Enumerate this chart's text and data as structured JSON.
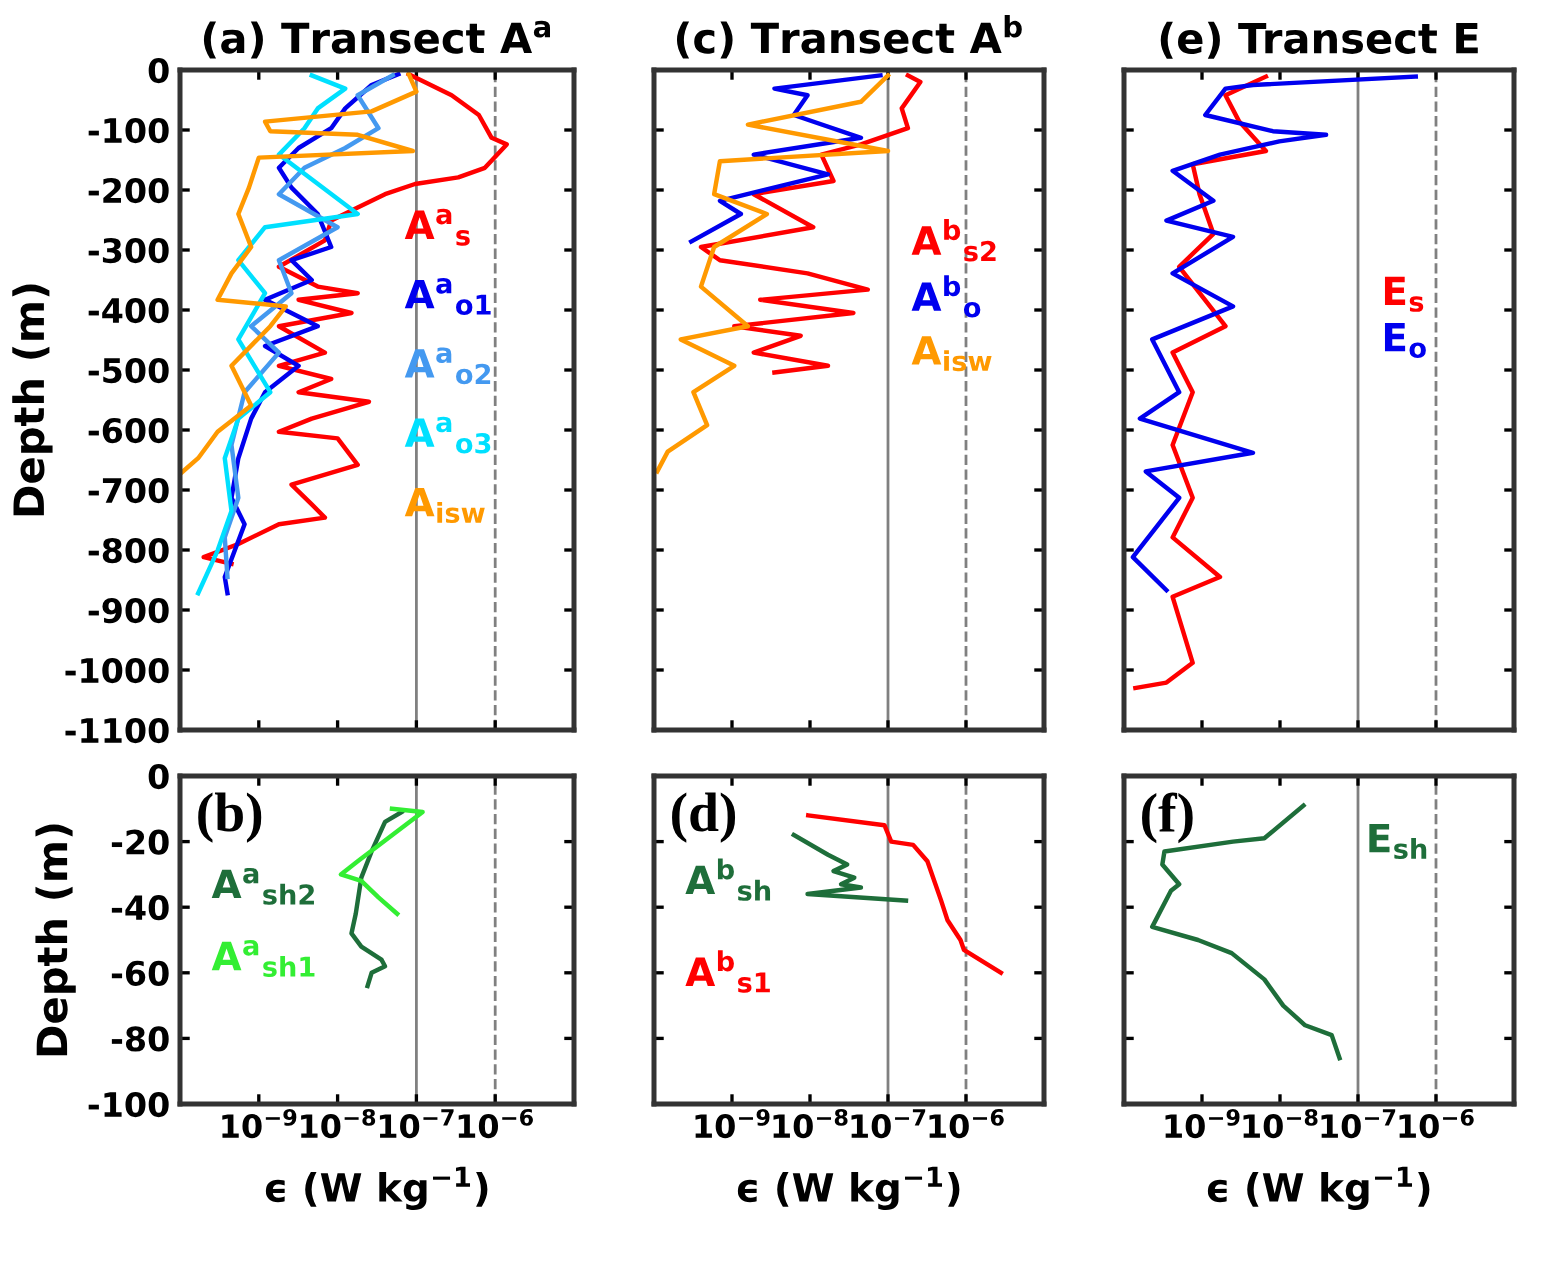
{
  "chart_data": [
    {
      "type": "line",
      "title": "(a) Transect A$^{a}$",
      "ylabel": "Depth (m)",
      "log": "x",
      "xlim": [
        1e-10,
        1e-05
      ],
      "ylim": [
        -1100,
        0
      ],
      "tick_labels": "y",
      "legend": false,
      "grid": false,
      "xticks": [
        {
          "value": 1e-09,
          "label": null
        },
        {
          "value": 1e-08,
          "label": null
        },
        {
          "value": 1e-07,
          "label": null
        },
        {
          "value": 1e-06,
          "label": null
        }
      ],
      "yticks": [
        0,
        -100,
        -200,
        -300,
        -400,
        -500,
        -600,
        -700,
        -800,
        -900,
        -1000,
        -1100
      ],
      "ref_lines": [
        {
          "axis": "x",
          "value": 1e-07,
          "color": "#808080",
          "line_style": "solid"
        },
        {
          "axis": "x",
          "value": 1e-06,
          "color": "#808080",
          "line_style": "dashed"
        }
      ],
      "series": [
        {
          "name": "A$^{a}$$_{s}$",
          "color": "#ff0000",
          "x": [
            8e-08,
            2.8e-07,
            6.2e-07,
            9e-07,
            1.4e-06,
            7.4e-07,
            3.4e-07,
            9.6e-08,
            4e-08,
            1.8e-08,
            8.3e-09,
            6.9e-09,
            1.8e-09,
            5.6e-09,
            1.8e-08,
            3.2e-09,
            1.5e-08,
            1.8e-09,
            6.9e-09,
            1.8e-09,
            8.3e-09,
            3.2e-09,
            2.5e-08,
            4.7e-09,
            1.8e-09,
            1e-08,
            1.8e-08,
            2.6e-09,
            4.7e-09,
            6.9e-09,
            1.8e-09,
            5.5e-10,
            2e-10,
            4.5e-10
          ],
          "values": [
            -7,
            -42,
            -75,
            -113,
            -124,
            -163,
            -179,
            -190,
            -207,
            -229,
            -251,
            -284,
            -328,
            -361,
            -372,
            -383,
            -405,
            -427,
            -471,
            -493,
            -515,
            -537,
            -553,
            -581,
            -603,
            -614,
            -658,
            -691,
            -724,
            -746,
            -757,
            -790,
            -812,
            -823
          ]
        },
        {
          "name": "A$^{a}$$_{o1}$",
          "color": "#0000ee",
          "x": [
            5.9e-08,
            2.7e-08,
            1.25e-08,
            8.3e-09,
            3.2e-09,
            1.8e-09,
            2.6e-09,
            5.6e-09,
            8.3e-09,
            2.6e-09,
            4.7e-09,
            1.2e-09,
            5.6e-09,
            1.2e-09,
            3.2e-09,
            1.2e-09,
            8e-10,
            5.5e-10,
            4.5e-10,
            6.6e-10,
            3.7e-10,
            4e-10
          ],
          "values": [
            -7,
            -25,
            -64,
            -97,
            -130,
            -163,
            -196,
            -240,
            -295,
            -317,
            -350,
            -383,
            -427,
            -460,
            -493,
            -537,
            -581,
            -647,
            -713,
            -757,
            -845,
            -872
          ]
        },
        {
          "name": "A$^{a}$$_{o2}$",
          "color": "#4499f0",
          "x": [
            5e-08,
            1.8e-08,
            3.3e-08,
            1.25e-08,
            3.8e-09,
            1.8e-09,
            1e-08,
            1.8e-09,
            2.6e-09,
            8e-10,
            1.8e-09,
            6.6e-10,
            4.5e-10,
            5.5e-10,
            3.7e-10,
            4e-10
          ],
          "values": [
            -9,
            -42,
            -97,
            -130,
            -163,
            -207,
            -262,
            -317,
            -372,
            -427,
            -471,
            -537,
            -625,
            -713,
            -779,
            -845
          ]
        },
        {
          "name": "A$^{a}$$_{o3}$",
          "color": "#00e0ff",
          "x": [
            4.7e-09,
            1.25e-08,
            5.6e-09,
            3.8e-09,
            1.8e-09,
            1.8e-08,
            1.2e-09,
            5.5e-10,
            1.2e-09,
            5.5e-10,
            1.4e-09,
            5.5e-10,
            3.7e-10,
            4.5e-10,
            3e-10,
            1.7e-10
          ],
          "values": [
            -9,
            -31,
            -64,
            -97,
            -141,
            -240,
            -262,
            -317,
            -372,
            -449,
            -537,
            -581,
            -647,
            -735,
            -801,
            -872
          ]
        },
        {
          "name": "A$_{isw}$",
          "color": "#ff9900",
          "x": [
            8e-08,
            1e-07,
            2.7e-08,
            1.2e-09,
            1.4e-09,
            1.8e-08,
            9e-08,
            1e-09,
            7.5e-10,
            5.5e-10,
            8e-10,
            4.5e-10,
            3e-10,
            2.2e-09,
            1.4e-09,
            4.5e-10,
            8e-10,
            3e-10,
            1.7e-10,
            1.05e-10
          ],
          "values": [
            -7,
            -36,
            -69,
            -86,
            -102,
            -108,
            -135,
            -146,
            -196,
            -240,
            -295,
            -339,
            -383,
            -394,
            -427,
            -493,
            -559,
            -603,
            -647,
            -671
          ]
        }
      ]
    },
    {
      "type": "line",
      "title": "(c) Transect A$^{b}$",
      "log": "x",
      "xlim": [
        1e-10,
        1e-05
      ],
      "ylim": [
        -1100,
        0
      ],
      "tick_labels": false,
      "legend": false,
      "grid": false,
      "xticks": [
        {
          "value": 1e-09,
          "label": null
        },
        {
          "value": 1e-08,
          "label": null
        },
        {
          "value": 1e-07,
          "label": null
        },
        {
          "value": 1e-06,
          "label": null
        }
      ],
      "yticks": [
        0,
        -100,
        -200,
        -300,
        -400,
        -500,
        -600,
        -700,
        -800,
        -900,
        -1000,
        -1100
      ],
      "ref_lines": [
        {
          "axis": "x",
          "value": 1e-07,
          "color": "#808080",
          "line_style": "solid"
        },
        {
          "axis": "x",
          "value": 1e-06,
          "color": "#808080",
          "line_style": "dashed"
        }
      ],
      "series": [
        {
          "name": "A$^{b}$$_{s2}$",
          "color": "#ff0000",
          "x": [
            1.8e-07,
            2.6e-07,
            1.5e-07,
            1.8e-07,
            4.5e-08,
            1.4e-08,
            2e-08,
            1.9e-09,
            1.1e-08,
            4e-10,
            7e-10,
            9.3e-09,
            5.5e-08,
            2.3e-09,
            3.6e-08,
            1.07e-09,
            7.6e-09,
            1.9e-09,
            1.7e-08,
            3.5e-09
          ],
          "values": [
            -9,
            -20,
            -64,
            -97,
            -124,
            -141,
            -185,
            -207,
            -262,
            -295,
            -317,
            -339,
            -366,
            -383,
            -405,
            -427,
            -443,
            -471,
            -493,
            -504
          ]
        },
        {
          "name": "A$^{b}$$_{o}$",
          "color": "#0000ee",
          "x": [
            8e-08,
            3.5e-09,
            9.3e-09,
            6.2e-09,
            4.5e-08,
            1.9e-09,
            1.7e-08,
            7e-10,
            1.3e-09,
            3e-10
          ],
          "values": [
            -9,
            -31,
            -42,
            -75,
            -113,
            -141,
            -174,
            -218,
            -240,
            -286
          ]
        },
        {
          "name": "A$_{isw}$",
          "color": "#ff9900",
          "x": [
            1e-07,
            4.5e-08,
            1.6e-09,
            1e-07,
            7e-10,
            5.9e-10,
            2.8e-09,
            5.9e-10,
            4e-10,
            1.6e-09,
            2.2e-10,
            1.07e-09,
            3.2e-10,
            4.8e-10,
            1.5e-10,
            1.1e-10
          ],
          "values": [
            -9,
            -53,
            -91,
            -135,
            -152,
            -207,
            -240,
            -295,
            -361,
            -427,
            -449,
            -493,
            -537,
            -592,
            -636,
            -669
          ]
        }
      ]
    },
    {
      "type": "line",
      "title": "(e) Transect E",
      "log": "x",
      "xlim": [
        1e-10,
        1e-05
      ],
      "ylim": [
        -1100,
        0
      ],
      "tick_labels": false,
      "legend": false,
      "grid": false,
      "xticks": [
        {
          "value": 1e-09,
          "label": null
        },
        {
          "value": 1e-08,
          "label": null
        },
        {
          "value": 1e-07,
          "label": null
        },
        {
          "value": 1e-06,
          "label": null
        }
      ],
      "yticks": [
        0,
        -100,
        -200,
        -300,
        -400,
        -500,
        -600,
        -700,
        -800,
        -900,
        -1000,
        -1100
      ],
      "ref_lines": [
        {
          "axis": "x",
          "value": 1e-07,
          "color": "#808080",
          "line_style": "solid"
        },
        {
          "axis": "x",
          "value": 1e-06,
          "color": "#808080",
          "line_style": "dashed"
        }
      ],
      "series": [
        {
          "name": "E$_{s}$",
          "color": "#ff0000",
          "x": [
            6.6e-09,
            2e-09,
            3e-09,
            6.6e-09,
            7.6e-10,
            9.3e-10,
            1.4e-09,
            5.1e-10,
            2e-09,
            4.2e-10,
            7.6e-10,
            4.2e-10,
            7.6e-10,
            4.2e-10,
            1.7e-09,
            4.2e-10,
            7.6e-10,
            3.5e-10,
            1.4e-10
          ],
          "values": [
            -11,
            -42,
            -86,
            -135,
            -157,
            -207,
            -273,
            -328,
            -427,
            -471,
            -537,
            -625,
            -713,
            -779,
            -845,
            -878,
            -988,
            -1021,
            -1030
          ]
        },
        {
          "name": "E$_{o}$",
          "color": "#0000ee",
          "x": [
            5.5e-07,
            4.5e-09,
            2e-09,
            1.1e-09,
            8.1e-09,
            3.9e-08,
            9.8e-09,
            1.7e-09,
            4.2e-10,
            1.4e-09,
            3.5e-10,
            2.5e-09,
            4.2e-10,
            2.5e-09,
            2.3e-10,
            5.1e-10,
            1.6e-10,
            4.5e-09,
            1.9e-10,
            5.1e-10,
            1.3e-10,
            3.5e-10
          ],
          "values": [
            -11,
            -25,
            -31,
            -75,
            -102,
            -108,
            -119,
            -141,
            -168,
            -218,
            -251,
            -278,
            -339,
            -394,
            -449,
            -537,
            -581,
            -638,
            -669,
            -713,
            -812,
            -867
          ]
        }
      ]
    },
    {
      "type": "line",
      "xlabel": "ϵ (W kg$^{−1}$)",
      "ylabel": "Depth (m)",
      "log": "x",
      "xlim": [
        1e-10,
        1e-05
      ],
      "ylim": [
        -100,
        0
      ],
      "legend": false,
      "grid": false,
      "xticks": [
        {
          "value": 1e-09,
          "label": "10$^{−9}$"
        },
        {
          "value": 1e-08,
          "label": "10$^{−8}$"
        },
        {
          "value": 1e-07,
          "label": "10$^{−7}$"
        },
        {
          "value": 1e-06,
          "label": "10$^{−6}$"
        }
      ],
      "yticks": [
        0,
        -20,
        -40,
        -60,
        -80,
        -100
      ],
      "annotations": [
        "(b)"
      ],
      "ref_lines": [
        {
          "axis": "x",
          "value": 1e-07,
          "color": "#808080",
          "line_style": "solid"
        },
        {
          "axis": "x",
          "value": 1e-06,
          "color": "#808080",
          "line_style": "dashed"
        }
      ],
      "series": [
        {
          "name": "A$^{a}$$_{sh2}$",
          "color": "#1e6e3a",
          "x": [
            6.5e-08,
            4e-08,
            2.7e-08,
            2e-08,
            1.7e-08,
            1.5e-08,
            2e-08,
            3.6e-08,
            4e-08,
            2.7e-08,
            2.4e-08
          ],
          "values": [
            -11,
            -14,
            -23,
            -31,
            -42,
            -48,
            -52,
            -56,
            -58,
            -60,
            -64
          ]
        },
        {
          "name": "A$^{a}$$_{sh1}$",
          "color": "#33ee33",
          "x": [
            4.9e-08,
            1.2e-07,
            1.8e-08,
            1.1e-08,
            2e-08,
            3.3e-08,
            5.7e-08
          ],
          "values": [
            -10,
            -11,
            -26,
            -30,
            -32,
            -37,
            -42
          ]
        }
      ]
    },
    {
      "type": "line",
      "xlabel": "ϵ (W kg$^{−1}$)",
      "log": "x",
      "xlim": [
        1e-10,
        1e-05
      ],
      "ylim": [
        -100,
        0
      ],
      "tick_labels": "x",
      "legend": false,
      "grid": false,
      "xticks": [
        {
          "value": 1e-09,
          "label": "10$^{−9}$"
        },
        {
          "value": 1e-08,
          "label": "10$^{−8}$"
        },
        {
          "value": 1e-07,
          "label": "10$^{−7}$"
        },
        {
          "value": 1e-06,
          "label": "10$^{−6}$"
        }
      ],
      "yticks": [
        0,
        -20,
        -40,
        -60,
        -80,
        -100
      ],
      "annotations": [
        "(d)"
      ],
      "ref_lines": [
        {
          "axis": "x",
          "value": 1e-07,
          "color": "#808080",
          "line_style": "solid"
        },
        {
          "axis": "x",
          "value": 1e-06,
          "color": "#808080",
          "line_style": "dashed"
        }
      ],
      "series": [
        {
          "name": "A$^{b}$$_{sh}$",
          "color": "#1e6e3a",
          "x": [
            6.2e-09,
            1.7e-08,
            3e-08,
            2e-08,
            3.7e-08,
            2.5e-08,
            4.5e-08,
            9.3e-09,
            1.7e-07
          ],
          "values": [
            -18,
            -24,
            -27,
            -29,
            -31,
            -33,
            -34,
            -36,
            -38
          ]
        },
        {
          "name": "A$^{b}$$_{s1}$",
          "color": "#ff0000",
          "x": [
            9.5e-09,
            9e-08,
            1.1e-07,
            2.1e-07,
            3.2e-07,
            4.8e-07,
            5.8e-07,
            8.5e-07,
            9.4e-07,
            2.8e-06
          ],
          "values": [
            -12,
            -15,
            -20,
            -21,
            -26,
            -38,
            -44,
            -50,
            -53,
            -60
          ]
        }
      ]
    },
    {
      "type": "line",
      "xlabel": "ϵ (W kg$^{−1}$)",
      "log": "x",
      "xlim": [
        1e-10,
        1e-05
      ],
      "ylim": [
        -100,
        0
      ],
      "tick_labels": "x",
      "legend": false,
      "grid": false,
      "xticks": [
        {
          "value": 1e-09,
          "label": "10$^{−9}$"
        },
        {
          "value": 1e-08,
          "label": "10$^{−8}$"
        },
        {
          "value": 1e-07,
          "label": "10$^{−7}$"
        },
        {
          "value": 1e-06,
          "label": "10$^{−6}$"
        }
      ],
      "yticks": [
        0,
        -20,
        -40,
        -60,
        -80,
        -100
      ],
      "annotations": [
        "(f)"
      ],
      "ref_lines": [
        {
          "axis": "x",
          "value": 1e-07,
          "color": "#808080",
          "line_style": "solid"
        },
        {
          "axis": "x",
          "value": 1e-06,
          "color": "#808080",
          "line_style": "dashed"
        }
      ],
      "series": [
        {
          "name": "E$_{sh}$",
          "color": "#1e6e3a",
          "x": [
            2e-08,
            6.3e-09,
            2.5e-09,
            3.3e-10,
            3.1e-10,
            5.1e-10,
            4e-10,
            2.3e-10,
            8.9e-10,
            2.4e-09,
            6.3e-09,
            1.1e-08,
            2.1e-08,
            4.6e-08,
            5.8e-08
          ],
          "values": [
            -9,
            -19,
            -20,
            -23,
            -27,
            -33,
            -35,
            -46,
            -50,
            -54,
            -62,
            -70,
            -76,
            -79,
            -86
          ]
        }
      ]
    }
  ]
}
